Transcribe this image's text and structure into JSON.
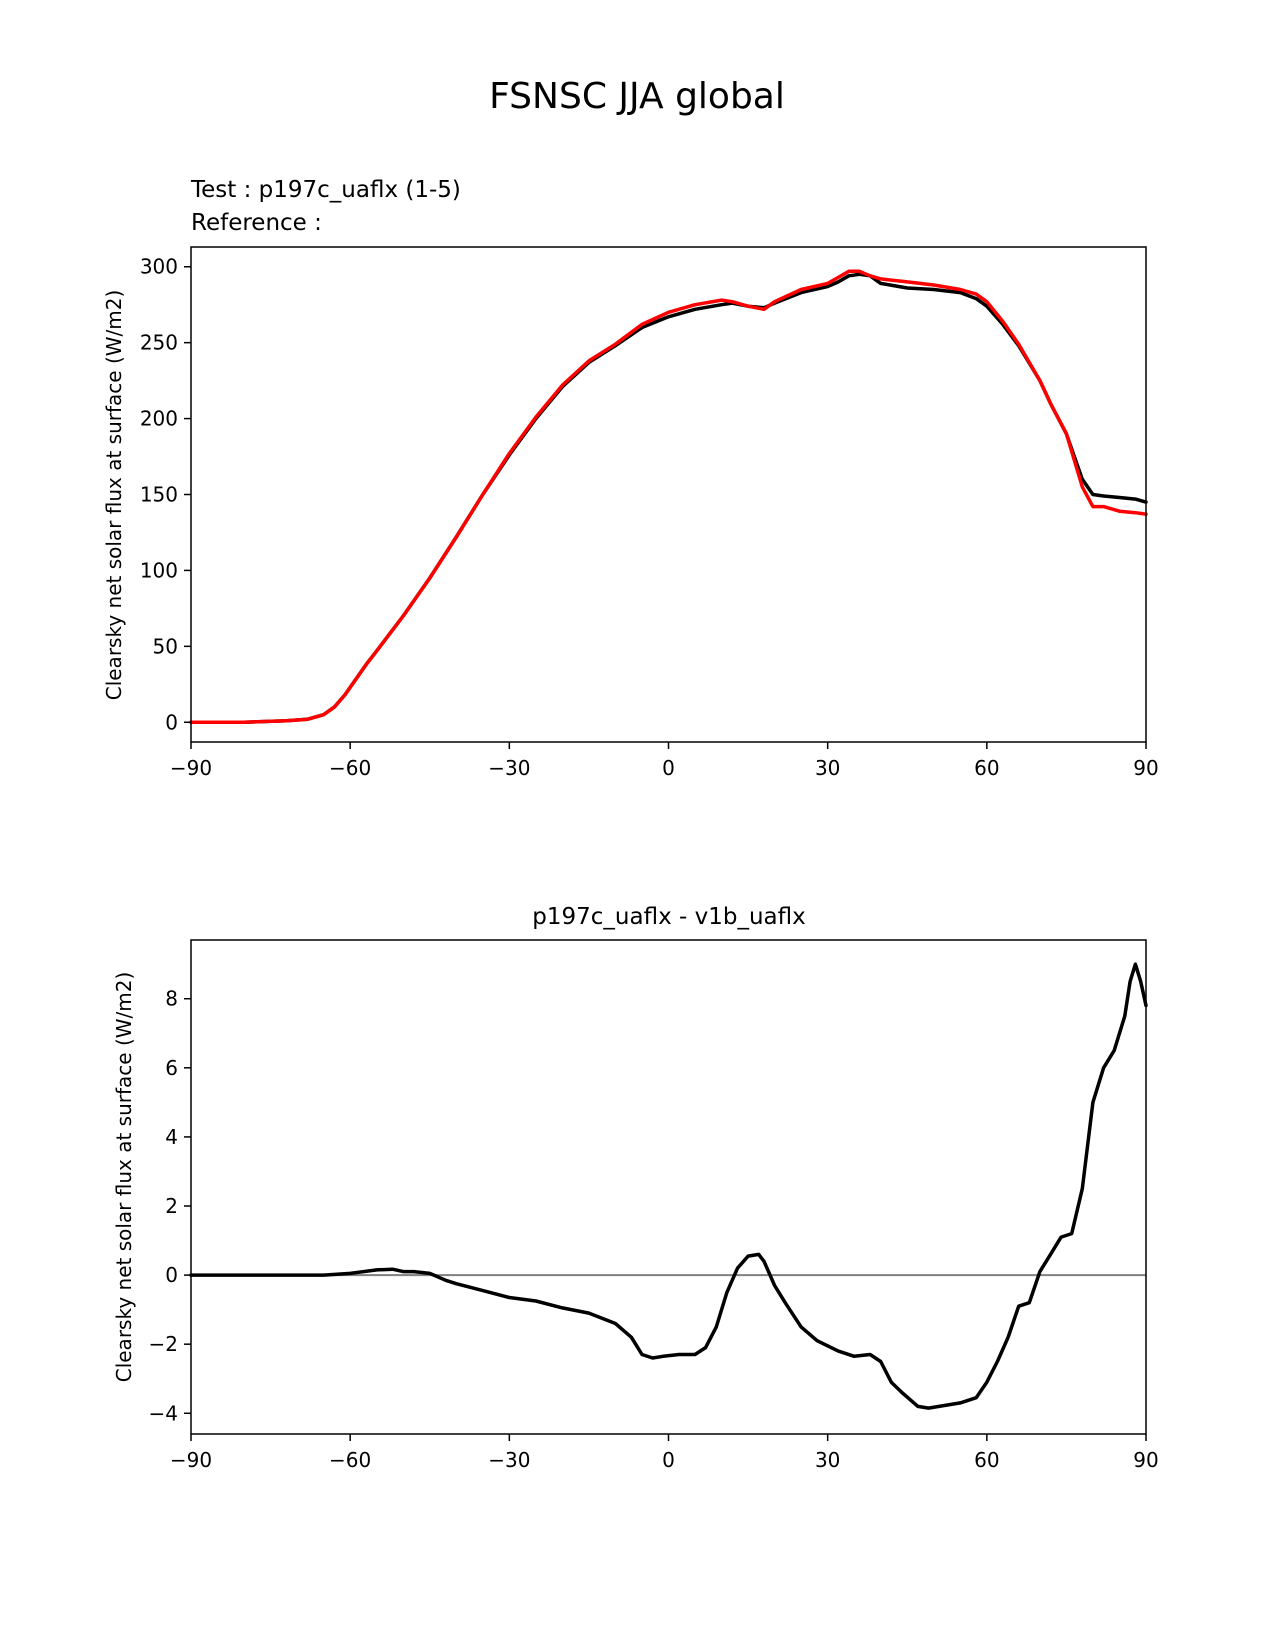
{
  "figure": {
    "title": "FSNSC JJA global"
  },
  "colors": {
    "test": "#000000",
    "reference": "#ff0000",
    "zero_line": "#808080",
    "axes": "#000000"
  },
  "chart_data": [
    {
      "type": "line",
      "subtitle_test": "Test : p197c_uaflx (1-5)",
      "subtitle_reference": "Reference :",
      "xlabel": "",
      "ylabel": "Clearsky net solar flux at surface (W/m2)",
      "xlim": [
        -90,
        90
      ],
      "ylim": [
        -13,
        313
      ],
      "xticks": [
        -90,
        -60,
        -30,
        0,
        30,
        60,
        90
      ],
      "xtick_labels": [
        "−90",
        "−60",
        "−30",
        "0",
        "30",
        "60",
        "90"
      ],
      "yticks": [
        0,
        50,
        100,
        150,
        200,
        250,
        300
      ],
      "ytick_labels": [
        "0",
        "50",
        "100",
        "150",
        "200",
        "250",
        "300"
      ],
      "grid": false,
      "series": [
        {
          "key": "test",
          "x": [
            -90,
            -80,
            -72,
            -68,
            -65,
            -63,
            -61,
            -59,
            -57,
            -55,
            -50,
            -45,
            -40,
            -35,
            -30,
            -25,
            -20,
            -15,
            -10,
            -5,
            0,
            5,
            10,
            12,
            15,
            18,
            20,
            25,
            30,
            32,
            34,
            36,
            38,
            40,
            45,
            50,
            55,
            58,
            60,
            63,
            66,
            70,
            72,
            75,
            78,
            80,
            82,
            85,
            88,
            90
          ],
          "y": [
            0,
            0,
            1,
            2,
            5,
            10,
            18,
            28,
            38,
            47,
            70,
            95,
            122,
            150,
            176,
            200,
            221,
            237,
            248,
            260,
            267,
            272,
            275,
            276,
            274,
            273,
            276,
            283,
            287,
            290,
            294,
            295,
            294,
            289,
            286,
            285,
            283,
            279,
            274,
            262,
            248,
            225,
            210,
            190,
            160,
            150,
            149,
            148,
            147,
            145
          ]
        },
        {
          "key": "reference",
          "x": [
            -90,
            -80,
            -72,
            -68,
            -65,
            -63,
            -61,
            -59,
            -57,
            -55,
            -50,
            -45,
            -40,
            -35,
            -30,
            -25,
            -20,
            -15,
            -10,
            -5,
            0,
            5,
            10,
            12,
            15,
            18,
            20,
            25,
            30,
            32,
            34,
            36,
            38,
            40,
            45,
            50,
            55,
            58,
            60,
            63,
            66,
            70,
            72,
            75,
            78,
            80,
            82,
            85,
            88,
            90
          ],
          "y": [
            0,
            0,
            1,
            2,
            5,
            10,
            18,
            28,
            38,
            47,
            70,
            95,
            122,
            150,
            177,
            201,
            222,
            238,
            249,
            262,
            270,
            275,
            278,
            277,
            274,
            272,
            277,
            285,
            289,
            293,
            297,
            297,
            294,
            292,
            290,
            288,
            285,
            282,
            277,
            264,
            249,
            225,
            210,
            190,
            155,
            142,
            142,
            139,
            138,
            137
          ]
        }
      ]
    },
    {
      "type": "line",
      "title": "p197c_uaflx - v1b_uaflx",
      "xlabel": "",
      "ylabel": "Clearsky net solar flux at surface (W/m2)",
      "xlim": [
        -90,
        90
      ],
      "ylim": [
        -4.6,
        9.7
      ],
      "xticks": [
        -90,
        -60,
        -30,
        0,
        30,
        60,
        90
      ],
      "xtick_labels": [
        "−90",
        "−60",
        "−30",
        "0",
        "30",
        "60",
        "90"
      ],
      "yticks": [
        -4,
        -2,
        0,
        2,
        4,
        6,
        8
      ],
      "ytick_labels": [
        "−4",
        "−2",
        "0",
        "2",
        "4",
        "6",
        "8"
      ],
      "grid": false,
      "zero_line": 0,
      "series": [
        {
          "key": "difference",
          "x": [
            -90,
            -75,
            -65,
            -60,
            -55,
            -52,
            -50,
            -48,
            -45,
            -42,
            -40,
            -35,
            -30,
            -25,
            -20,
            -15,
            -10,
            -7,
            -5,
            -3,
            -1,
            2,
            5,
            7,
            9,
            11,
            13,
            15,
            17,
            18,
            20,
            22,
            25,
            28,
            32,
            35,
            38,
            40,
            42,
            44,
            47,
            49,
            51,
            55,
            58,
            60,
            62,
            64,
            66,
            68,
            70,
            72,
            74,
            76,
            78,
            80,
            82,
            84,
            86,
            87,
            88,
            89,
            90
          ],
          "y": [
            0,
            0,
            0,
            0.05,
            0.15,
            0.17,
            0.1,
            0.1,
            0.05,
            -0.15,
            -0.25,
            -0.45,
            -0.65,
            -0.75,
            -0.95,
            -1.1,
            -1.4,
            -1.8,
            -2.3,
            -2.4,
            -2.35,
            -2.3,
            -2.3,
            -2.1,
            -1.5,
            -0.5,
            0.2,
            0.55,
            0.6,
            0.4,
            -0.3,
            -0.8,
            -1.5,
            -1.9,
            -2.2,
            -2.35,
            -2.3,
            -2.5,
            -3.1,
            -3.4,
            -3.8,
            -3.85,
            -3.8,
            -3.7,
            -3.55,
            -3.1,
            -2.5,
            -1.8,
            -0.9,
            -0.8,
            0.1,
            0.6,
            1.1,
            1.2,
            2.5,
            5.0,
            6.0,
            6.5,
            7.5,
            8.5,
            9.0,
            8.5,
            7.8
          ]
        }
      ]
    }
  ]
}
